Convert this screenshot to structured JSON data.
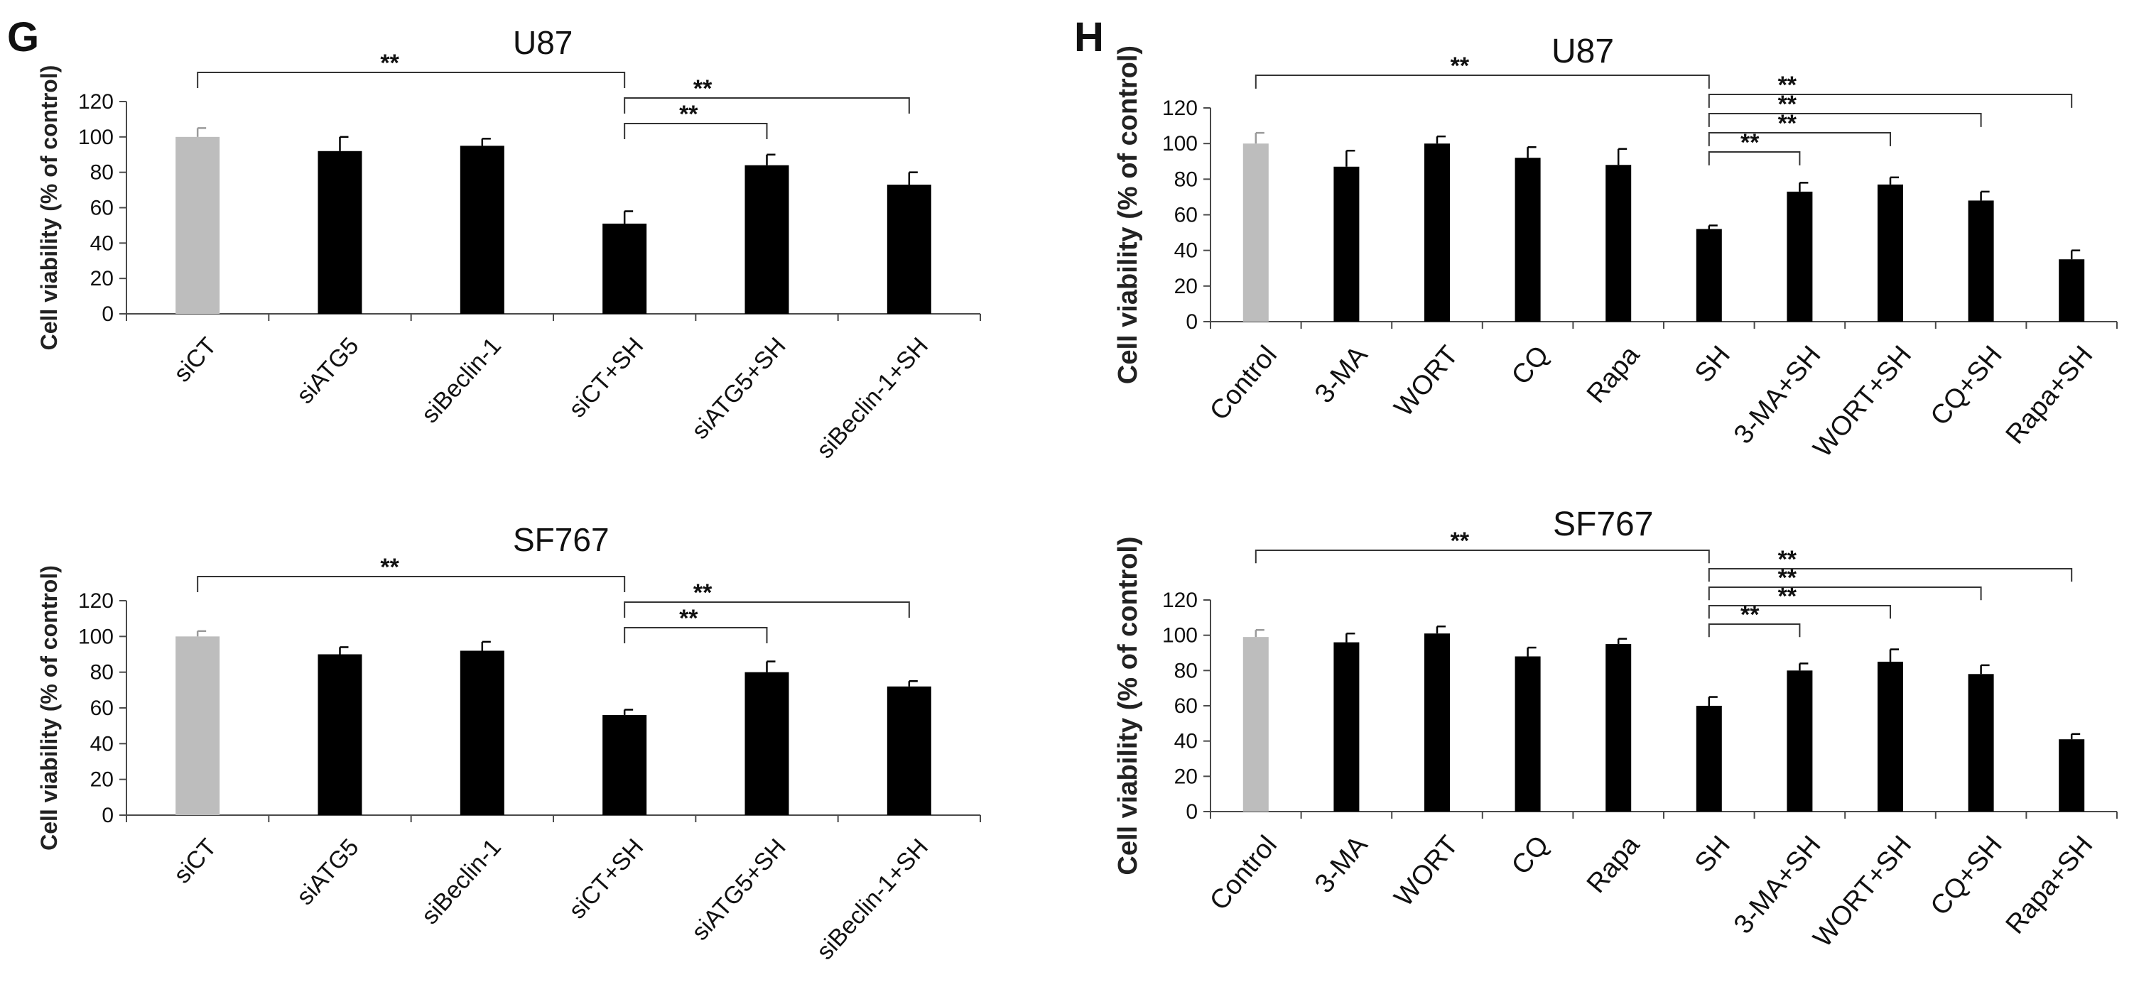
{
  "colors": {
    "control": "#bdbdbd",
    "treated": "#000000",
    "axis": "#4a4a4a",
    "bracket": "#333333",
    "text": "#111111"
  },
  "panels": [
    {
      "letter": "G"
    },
    {
      "letter": "H"
    }
  ],
  "chart_data": [
    {
      "panel": "G",
      "type": "bar",
      "title": "U87",
      "ylabel": "Cell viability (% of control)",
      "xlabel": "",
      "ylim": [
        0,
        120
      ],
      "yticks": [
        "0",
        "20",
        "40",
        "60",
        "80",
        "100",
        "120"
      ],
      "categories": [
        "siCT",
        "siATG5",
        "siBeclin-1",
        "siCT+SH",
        "siATG5+SH",
        "siBeclin-1+SH"
      ],
      "values": [
        100,
        92,
        95,
        51,
        84,
        73
      ],
      "errors": [
        5,
        8,
        4,
        7,
        6,
        7
      ],
      "bar_colors": [
        "control",
        "treated",
        "treated",
        "treated",
        "treated",
        "treated"
      ],
      "annotations": [
        {
          "from": 0,
          "to": 3,
          "label": "**",
          "level": 0
        },
        {
          "from": 3,
          "to": 4,
          "label": "**",
          "level": 2
        },
        {
          "from": 3,
          "to": 5,
          "label": "**",
          "level": 1
        }
      ]
    },
    {
      "panel": "G",
      "type": "bar",
      "title": "SF767",
      "ylabel": "Cell viability (% of control)",
      "xlabel": "",
      "ylim": [
        0,
        120
      ],
      "yticks": [
        "0",
        "20",
        "40",
        "60",
        "80",
        "100",
        "120"
      ],
      "categories": [
        "siCT",
        "siATG5",
        "siBeclin-1",
        "siCT+SH",
        "siATG5+SH",
        "siBeclin-1+SH"
      ],
      "values": [
        100,
        90,
        92,
        56,
        80,
        72
      ],
      "errors": [
        3,
        4,
        5,
        3,
        6,
        3
      ],
      "bar_colors": [
        "control",
        "treated",
        "treated",
        "treated",
        "treated",
        "treated"
      ],
      "annotations": [
        {
          "from": 0,
          "to": 3,
          "label": "**",
          "level": 0
        },
        {
          "from": 3,
          "to": 4,
          "label": "**",
          "level": 2
        },
        {
          "from": 3,
          "to": 5,
          "label": "**",
          "level": 1
        }
      ]
    },
    {
      "panel": "H",
      "type": "bar",
      "title": "U87",
      "ylabel": "Cell viability (% of control)",
      "xlabel": "",
      "ylim": [
        0,
        120
      ],
      "yticks": [
        "0",
        "20",
        "40",
        "60",
        "80",
        "100",
        "120"
      ],
      "categories": [
        "Control",
        "3-MA",
        "WORT",
        "CQ",
        "Rapa",
        "SH",
        "3-MA+SH",
        "WORT+SH",
        "CQ+SH",
        "Rapa+SH"
      ],
      "values": [
        100,
        87,
        100,
        92,
        88,
        52,
        73,
        77,
        68,
        35
      ],
      "errors": [
        6,
        9,
        4,
        6,
        9,
        2,
        5,
        4,
        5,
        5
      ],
      "bar_colors": [
        "control",
        "treated",
        "treated",
        "treated",
        "treated",
        "treated",
        "treated",
        "treated",
        "treated",
        "treated"
      ],
      "annotations": [
        {
          "from": 0,
          "to": 5,
          "label": "**",
          "level": 0
        },
        {
          "from": 5,
          "to": 9,
          "label": "**",
          "level": 1
        },
        {
          "from": 5,
          "to": 8,
          "label": "**",
          "level": 2
        },
        {
          "from": 5,
          "to": 7,
          "label": "**",
          "level": 3
        },
        {
          "from": 5,
          "to": 6,
          "label": "**",
          "level": 4
        }
      ]
    },
    {
      "panel": "H",
      "type": "bar",
      "title": "SF767",
      "ylabel": "Cell viability (% of control)",
      "xlabel": "",
      "ylim": [
        0,
        120
      ],
      "yticks": [
        "0",
        "20",
        "40",
        "60",
        "80",
        "100",
        "120"
      ],
      "categories": [
        "Control",
        "3-MA",
        "WORT",
        "CQ",
        "Rapa",
        "SH",
        "3-MA+SH",
        "WORT+SH",
        "CQ+SH",
        "Rapa+SH"
      ],
      "values": [
        99,
        96,
        101,
        88,
        95,
        60,
        80,
        85,
        78,
        41
      ],
      "errors": [
        4,
        5,
        4,
        5,
        3,
        5,
        4,
        7,
        5,
        3
      ],
      "bar_colors": [
        "control",
        "treated",
        "treated",
        "treated",
        "treated",
        "treated",
        "treated",
        "treated",
        "treated",
        "treated"
      ],
      "annotations": [
        {
          "from": 0,
          "to": 5,
          "label": "**",
          "level": 0
        },
        {
          "from": 5,
          "to": 9,
          "label": "**",
          "level": 1
        },
        {
          "from": 5,
          "to": 8,
          "label": "**",
          "level": 2
        },
        {
          "from": 5,
          "to": 7,
          "label": "**",
          "level": 3
        },
        {
          "from": 5,
          "to": 6,
          "label": "**",
          "level": 4
        }
      ]
    }
  ]
}
